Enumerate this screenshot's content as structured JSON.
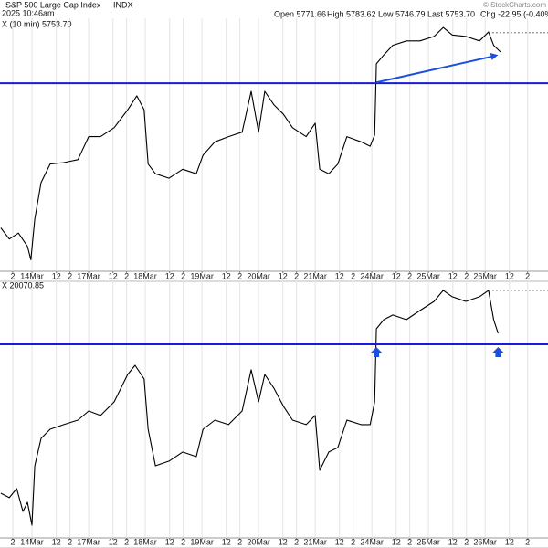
{
  "chart_data": [
    {
      "type": "line",
      "title": "S&P 500 Large Cap Index",
      "exchange": "INDX",
      "timestamp": "2025 10:46am",
      "legend_label": "X (10 min) 5753.70",
      "quote": [
        "Open 5771.66",
        "High 5783.62",
        "Low 5746.79",
        "Last 5753.70",
        "Chg -22.95 (-0.40%)"
      ],
      "credit": "© StockCharts.com",
      "xlim": [
        -0.565,
        9.11
      ],
      "ylim": [
        5460,
        5796
      ],
      "grid": true,
      "xticks": [
        {
          "value": -0.34,
          "label": "2"
        },
        {
          "value": 0,
          "label": "14Mar"
        },
        {
          "value": 0.43,
          "label": "12"
        },
        {
          "value": 0.67,
          "label": "2"
        },
        {
          "value": 1,
          "label": "17Mar"
        },
        {
          "value": 1.43,
          "label": "12"
        },
        {
          "value": 1.67,
          "label": "2"
        },
        {
          "value": 2,
          "label": "18Mar"
        },
        {
          "value": 2.43,
          "label": "12"
        },
        {
          "value": 2.67,
          "label": "2"
        },
        {
          "value": 3,
          "label": "19Mar"
        },
        {
          "value": 3.43,
          "label": "12"
        },
        {
          "value": 3.67,
          "label": "2"
        },
        {
          "value": 4,
          "label": "20Mar"
        },
        {
          "value": 4.43,
          "label": "12"
        },
        {
          "value": 4.67,
          "label": "2"
        },
        {
          "value": 5,
          "label": "21Mar"
        },
        {
          "value": 5.43,
          "label": "12"
        },
        {
          "value": 5.67,
          "label": "2"
        },
        {
          "value": 6,
          "label": "24Mar"
        },
        {
          "value": 6.43,
          "label": "12"
        },
        {
          "value": 6.67,
          "label": "2"
        },
        {
          "value": 7,
          "label": "25Mar"
        },
        {
          "value": 7.43,
          "label": "12"
        },
        {
          "value": 7.67,
          "label": "2"
        },
        {
          "value": 8,
          "label": "26Mar"
        },
        {
          "value": 8.43,
          "label": "12"
        },
        {
          "value": 8.75,
          "label": "2"
        }
      ],
      "x": [
        -0.55,
        -0.4,
        -0.24,
        -0.08,
        -0.02,
        0.05,
        0.16,
        0.32,
        0.56,
        0.81,
        1.0,
        1.21,
        1.45,
        1.69,
        1.85,
        1.98,
        2.05,
        2.18,
        2.42,
        2.66,
        2.9,
        3.02,
        3.23,
        3.47,
        3.71,
        3.87,
        4.0,
        4.11,
        4.27,
        4.44,
        4.6,
        4.84,
        5.0,
        5.08,
        5.24,
        5.4,
        5.56,
        5.81,
        5.97,
        6.05,
        6.08,
        6.21,
        6.37,
        6.61,
        6.85,
        7.1,
        7.26,
        7.42,
        7.66,
        7.9,
        8.06,
        8.15,
        8.27
      ],
      "series": [
        {
          "color": "#000000",
          "values": [
            5516,
            5501,
            5509,
            5491,
            5473,
            5528,
            5577,
            5602,
            5604,
            5608,
            5639,
            5639,
            5651,
            5675,
            5694,
            5675,
            5602,
            5589,
            5583,
            5595,
            5589,
            5614,
            5632,
            5639,
            5645,
            5700,
            5645,
            5700,
            5682,
            5669,
            5651,
            5639,
            5657,
            5595,
            5589,
            5602,
            5639,
            5632,
            5626,
            5641,
            5737,
            5749,
            5762,
            5768,
            5768,
            5774,
            5786,
            5776,
            5774,
            5768,
            5780,
            5762,
            5753
          ]
        }
      ],
      "hline": {
        "value": 5711,
        "color": "#1a1adb"
      },
      "ref_line": {
        "value": 5779,
        "x_start": 8.06
      },
      "trend_arrow": {
        "x": [
          6.08,
          8.23
        ],
        "values": [
          5712,
          5749
        ],
        "color": "#1a4fe0"
      }
    },
    {
      "type": "line",
      "legend_label": "X 20070.85",
      "xlim": [
        -0.565,
        9.11
      ],
      "ylim": [
        19103,
        20320
      ],
      "grid": true,
      "xticks": [
        {
          "value": -0.34,
          "label": "2"
        },
        {
          "value": 0,
          "label": "14Mar"
        },
        {
          "value": 0.43,
          "label": "12"
        },
        {
          "value": 0.67,
          "label": "2"
        },
        {
          "value": 1,
          "label": "17Mar"
        },
        {
          "value": 1.43,
          "label": "12"
        },
        {
          "value": 1.67,
          "label": "2"
        },
        {
          "value": 2,
          "label": "18Mar"
        },
        {
          "value": 2.43,
          "label": "12"
        },
        {
          "value": 2.67,
          "label": "2"
        },
        {
          "value": 3,
          "label": "19Mar"
        },
        {
          "value": 3.43,
          "label": "12"
        },
        {
          "value": 3.67,
          "label": "2"
        },
        {
          "value": 4,
          "label": "20Mar"
        },
        {
          "value": 4.43,
          "label": "12"
        },
        {
          "value": 4.67,
          "label": "2"
        },
        {
          "value": 5,
          "label": "21Mar"
        },
        {
          "value": 5.43,
          "label": "12"
        },
        {
          "value": 5.67,
          "label": "2"
        },
        {
          "value": 6,
          "label": "24Mar"
        },
        {
          "value": 6.43,
          "label": "12"
        },
        {
          "value": 6.67,
          "label": "2"
        },
        {
          "value": 7,
          "label": "25Mar"
        },
        {
          "value": 7.43,
          "label": "12"
        },
        {
          "value": 7.67,
          "label": "2"
        },
        {
          "value": 8,
          "label": "26Mar"
        },
        {
          "value": 8.43,
          "label": "12"
        },
        {
          "value": 8.75,
          "label": "2"
        }
      ],
      "x": [
        -0.55,
        -0.4,
        -0.27,
        -0.16,
        -0.08,
        0.0,
        0.05,
        0.16,
        0.32,
        0.56,
        0.81,
        1.0,
        1.21,
        1.45,
        1.69,
        1.82,
        1.98,
        2.05,
        2.18,
        2.42,
        2.66,
        2.9,
        3.02,
        3.23,
        3.47,
        3.71,
        3.87,
        4.0,
        4.11,
        4.27,
        4.44,
        4.6,
        4.84,
        5.0,
        5.08,
        5.24,
        5.4,
        5.56,
        5.81,
        5.97,
        6.05,
        6.08,
        6.21,
        6.37,
        6.61,
        6.85,
        7.1,
        7.26,
        7.42,
        7.66,
        7.9,
        8.06,
        8.15,
        8.23
      ],
      "series": [
        {
          "color": "#000000",
          "values": [
            19318,
            19297,
            19340,
            19232,
            19275,
            19168,
            19447,
            19576,
            19619,
            19641,
            19662,
            19705,
            19684,
            19748,
            19877,
            19920,
            19856,
            19619,
            19447,
            19469,
            19512,
            19490,
            19619,
            19662,
            19641,
            19705,
            19899,
            19748,
            19877,
            19813,
            19727,
            19662,
            19641,
            19684,
            19426,
            19512,
            19533,
            19662,
            19641,
            19641,
            19748,
            20092,
            20135,
            20157,
            20135,
            20178,
            20221,
            20273,
            20243,
            20221,
            20243,
            20273,
            20135,
            20071
          ]
        }
      ],
      "hline": {
        "value": 20019,
        "color": "#1a1adb"
      },
      "ref_line": {
        "value": 20273,
        "x_start": 8.06
      },
      "arrows": {
        "x": [
          6.08,
          8.23
        ],
        "values": [
          20006,
          20006
        ],
        "color": "#1a4fe0"
      }
    }
  ]
}
